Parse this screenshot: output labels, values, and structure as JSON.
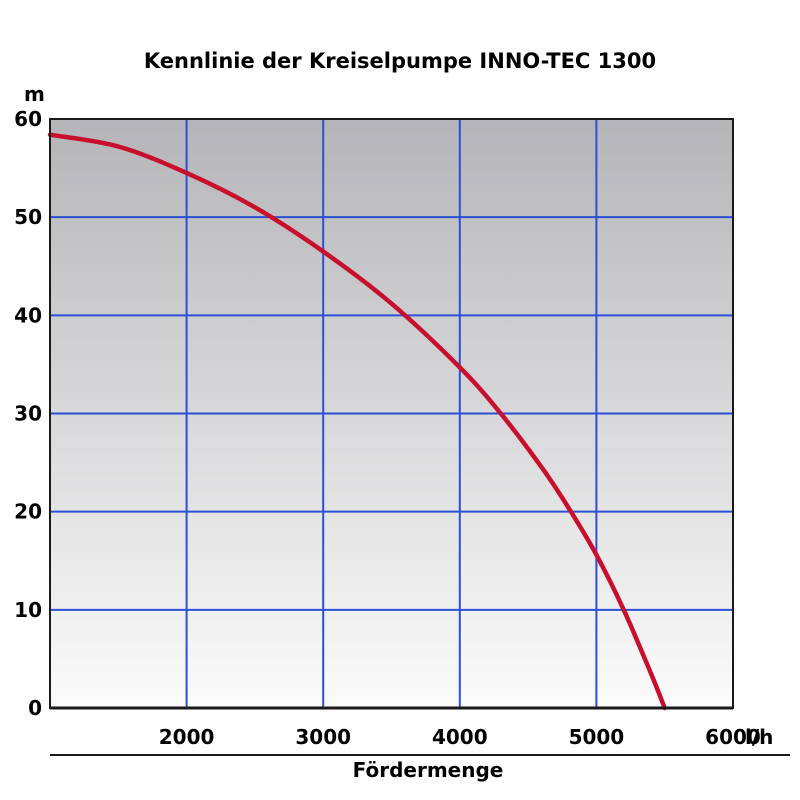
{
  "chart_data": {
    "type": "line",
    "title": "Kennlinie der Kreiselpumpe INNO-TEC 1300",
    "xlabel": "Fördermenge",
    "x_unit": "l/h",
    "y_unit": "m",
    "xlim": [
      1000,
      6000
    ],
    "ylim": [
      0,
      60
    ],
    "x_ticks": [
      "2000",
      "3000",
      "4000",
      "5000",
      "6000"
    ],
    "y_ticks": [
      "0",
      "10",
      "20",
      "30",
      "40",
      "50",
      "60"
    ],
    "grid": true,
    "series": [
      {
        "x": [
          1000,
          1500,
          2000,
          2500,
          3000,
          3500,
          4000,
          4300,
          4600,
          4800,
          5000,
          5200,
          5400,
          5500
        ],
        "y": [
          58.4,
          57.2,
          54.5,
          51.0,
          46.5,
          41.2,
          34.7,
          30.0,
          24.5,
          20.3,
          15.6,
          10.0,
          3.5,
          0
        ]
      }
    ],
    "colors": {
      "line": "#c8102e",
      "grid": "#2d4fd6",
      "frame": "#1a1a1a",
      "bg_top": "#b5b5b9",
      "bg_bottom": "#fbfbfb"
    }
  }
}
